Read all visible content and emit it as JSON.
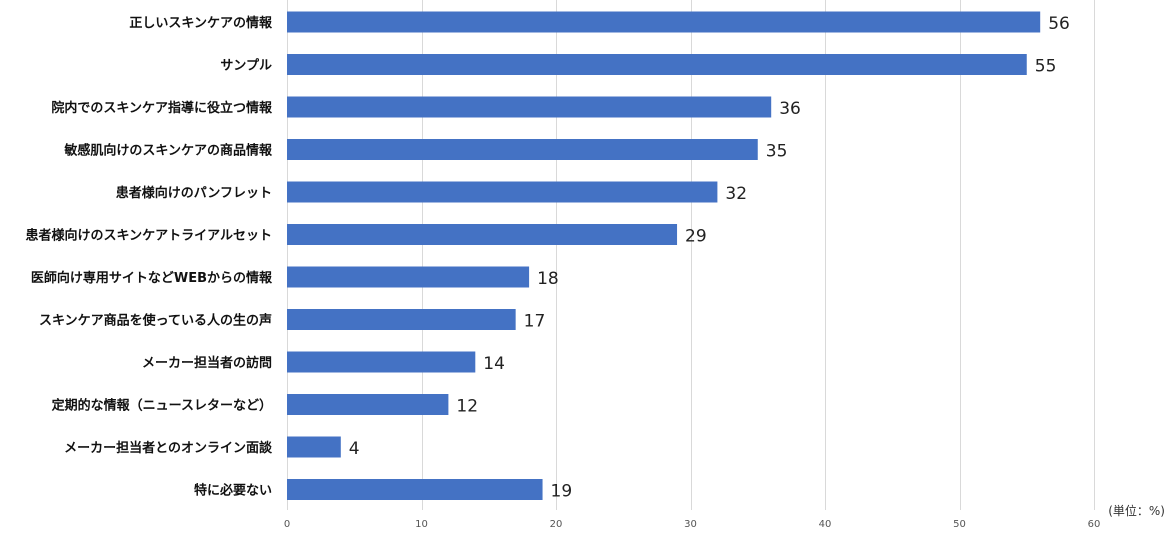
{
  "chart_data": {
    "type": "bar",
    "orientation": "horizontal",
    "categories": [
      "正しいスキンケアの情報",
      "サンプル",
      "院内でのスキンケア指導に役立つ情報",
      "敏感肌向けのスキンケアの商品情報",
      "患者様向けのパンフレット",
      "患者様向けのスキンケアトライアルセット",
      "医師向け専用サイトなどWEBからの情報",
      "スキンケア商品を使っている人の生の声",
      "メーカー担当者の訪問",
      "定期的な情報（ニュースレターなど）",
      "メーカー担当者とのオンライン面談",
      "特に必要ない"
    ],
    "values": [
      56,
      55,
      36,
      35,
      32,
      29,
      18,
      17,
      14,
      12,
      4,
      19
    ],
    "xlim": [
      0,
      60
    ],
    "ticks": [
      0,
      10,
      20,
      30,
      40,
      50,
      60
    ],
    "unit_label": "(単位：%)",
    "bar_color": "#4472c4",
    "grid": true
  }
}
